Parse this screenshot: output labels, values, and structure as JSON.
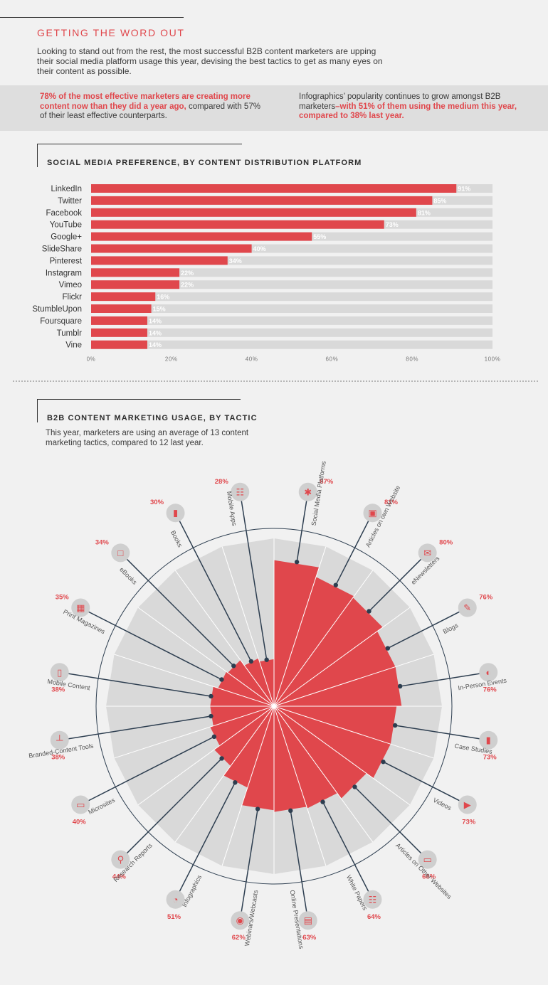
{
  "header": {
    "title": "GETTING THE WORD OUT",
    "intro": "Looking to stand out from the rest, the most successful B2B content marketers are upping their social media platform usage this year, devising the best tactics to get as many eyes on their content as possible."
  },
  "stats": {
    "left_highlight": "78% of the most effective marketers are creating more content now than they did a year ago,",
    "left_rest": " compared with 57% of their least effective counterparts.",
    "right_plain": "Infographics’ popularity continues to grow amongst B2B marketers",
    "right_highlight": "–with 51% of them using the medium this year, compared to 38% last year."
  },
  "colors": {
    "accent": "#e0474c",
    "track": "#d9d9d9",
    "dark": "#2d3e50",
    "bg": "#f1f1f1"
  },
  "section1": {
    "title": "SOCIAL MEDIA PREFERENCE, BY CONTENT DISTRIBUTION PLATFORM"
  },
  "section2": {
    "title": "B2B CONTENT MARKETING USAGE, BY TACTIC",
    "subtitle": "This year, marketers are using an average of 13 content marketing tactics, compared to 12 last year."
  },
  "chart_data": [
    {
      "type": "bar",
      "orientation": "horizontal",
      "title": "SOCIAL MEDIA PREFERENCE, BY CONTENT DISTRIBUTION PLATFORM",
      "categories": [
        "LinkedIn",
        "Twitter",
        "Facebook",
        "YouTube",
        "Google+",
        "SlideShare",
        "Pinterest",
        "Instagram",
        "Vimeo",
        "Flickr",
        "StumbleUpon",
        "Foursquare",
        "Tumblr",
        "Vine"
      ],
      "values": [
        91,
        85,
        81,
        73,
        55,
        40,
        34,
        22,
        22,
        16,
        15,
        14,
        14,
        14
      ],
      "value_suffix": "%",
      "xlim": [
        0,
        100
      ],
      "xticks": [
        "0%",
        "20%",
        "40%",
        "60%",
        "80%",
        "100%"
      ],
      "grid": false
    },
    {
      "type": "radial-bar",
      "title": "B2B CONTENT MARKETING USAGE, BY TACTIC",
      "categories": [
        "Social Media Platforms",
        "Articles on own Website",
        "eNewsletters",
        "Blogs",
        "In-Person Events",
        "Case Studies",
        "Videos",
        "Articles on Other Websites",
        "White Papers",
        "Online Presentations",
        "Webinars/Webcasts",
        "Infographics",
        "Research Reports",
        "Microsites",
        "Branded-Content Tools",
        "Mobile Content",
        "Print Magazines",
        "eBooks",
        "Books",
        "Mobile Apps"
      ],
      "values": [
        87,
        81,
        80,
        76,
        76,
        73,
        73,
        68,
        64,
        63,
        62,
        51,
        44,
        40,
        38,
        38,
        35,
        34,
        30,
        28
      ],
      "value_suffix": "%",
      "icons": [
        "share-icon",
        "browser-icon",
        "envelope-icon",
        "pencil-icon",
        "speech-head-icon",
        "book-icon",
        "video-camera-icon",
        "monitor-icon",
        "document-icon",
        "presentation-icon",
        "broadcast-icon",
        "pie-chart-icon",
        "magnifier-icon",
        "monitor-icon",
        "stamp-icon",
        "phone-icon",
        "magazine-icon",
        "tablet-icon",
        "book-icon",
        "apps-grid-icon"
      ],
      "rlim": [
        0,
        100
      ]
    }
  ]
}
